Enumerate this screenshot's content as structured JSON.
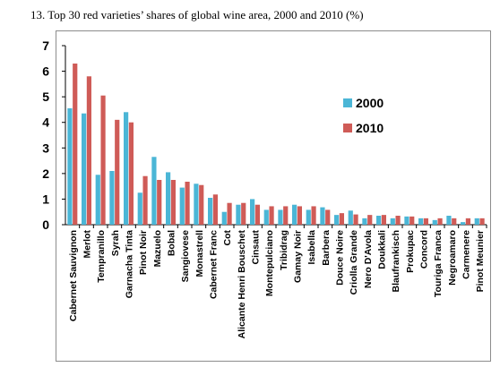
{
  "title": "13.  Top 30 red varieties’ shares of global wine area, 2000 and 2010 (%)",
  "colors": {
    "s2000": "#4bb6d6",
    "s2010": "#cf5b57",
    "axis": "#000000",
    "frame": "#8c8c8c"
  },
  "chart_data": {
    "type": "bar",
    "title": "13.  Top 30 red varieties’ shares of global wine area, 2000 and 2010 (%)",
    "xlabel": "",
    "ylabel": "",
    "ylim": [
      0,
      7
    ],
    "yticks": [
      0,
      1,
      2,
      3,
      4,
      5,
      6,
      7
    ],
    "grid": false,
    "legend_position": "right",
    "categories": [
      "Cabernet Sauvignon",
      "Merlot",
      "Tempranillo",
      "Syrah",
      "Garnacha Tinta",
      "Pinot Noir",
      "Mazuelo",
      "Bobal",
      "Sangiovese",
      "Monastrell",
      "Cabernet Franc",
      "Cot",
      "Alicante Henri Bouschet",
      "Cinsaut",
      "Montepulciano",
      "Tribidrag",
      "Gamay Noir",
      "Isabella",
      "Barbera",
      "Douce Noire",
      "Criolla Grande",
      "Nero D'Avola",
      "Doukkali",
      "Blaufrankisch",
      "Prokupac",
      "Concord",
      "Touriga Franca",
      "Negroamaro",
      "Carmenere",
      "Pinot Meunier"
    ],
    "series": [
      {
        "name": "2000",
        "values": [
          4.55,
          4.35,
          1.95,
          2.1,
          4.4,
          1.25,
          2.65,
          2.05,
          1.45,
          1.6,
          1.05,
          0.5,
          0.78,
          1.0,
          0.58,
          0.58,
          0.78,
          0.58,
          0.68,
          0.38,
          0.55,
          0.25,
          0.35,
          0.25,
          0.32,
          0.25,
          0.18,
          0.35,
          0.1,
          0.25
        ]
      },
      {
        "name": "2010",
        "values": [
          6.3,
          5.8,
          5.05,
          4.1,
          4.0,
          1.9,
          1.75,
          1.75,
          1.68,
          1.55,
          1.18,
          0.85,
          0.85,
          0.78,
          0.72,
          0.72,
          0.72,
          0.72,
          0.58,
          0.45,
          0.4,
          0.38,
          0.38,
          0.35,
          0.32,
          0.25,
          0.25,
          0.25,
          0.25,
          0.25
        ]
      }
    ]
  }
}
